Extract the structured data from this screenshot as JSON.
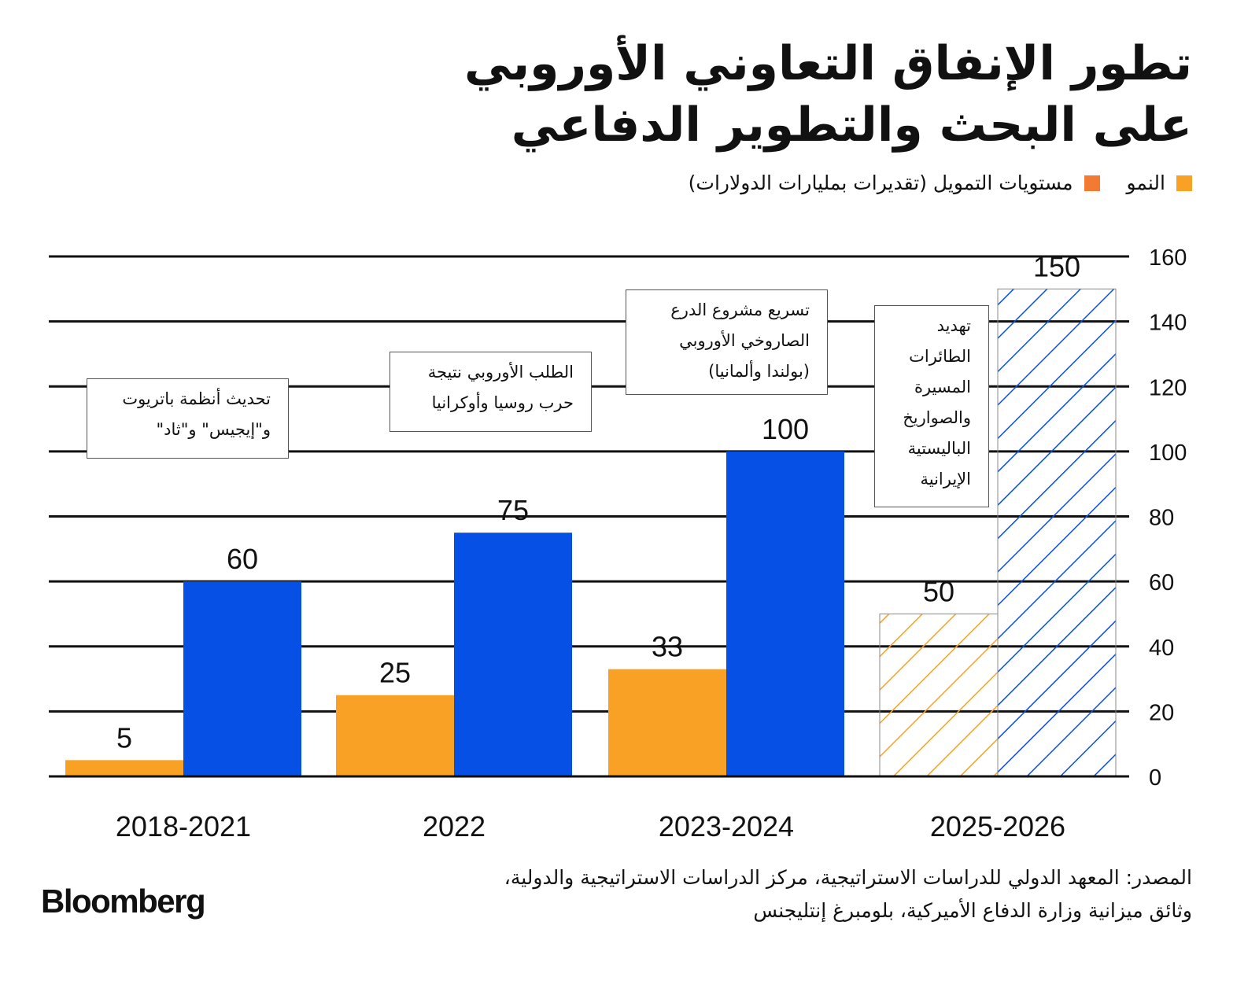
{
  "title": [
    "تطور الإنفاق التعاوني الأوروبي",
    "على البحث والتطوير الدفاعي"
  ],
  "legend": [
    {
      "label": "النمو",
      "color": "#f9a125"
    },
    {
      "label": "مستويات التمويل (تقديرات بمليارات الدولارات)",
      "color": "#f37a32"
    }
  ],
  "annotations": [
    "تحديث أنظمة باتريوت و\"إيجيس\" و\"ثاد\"",
    "الطلب الأوروبي نتيجة حرب روسيا وأوكرانيا",
    "تسريع مشروع الدرع الصاروخي الأوروبي (بولندا وألمانيا)",
    "تهديد الطائرات المسيرة والصواريخ الباليستية الإيرانية"
  ],
  "source": [
    "المصدر: المعهد الدولي للدراسات الاستراتيجية، مركز الدراسات الاستراتيجية والدولية،",
    "وثائق ميزانية وزارة الدفاع الأميركية، بلومبرغ إنتليجنس"
  ],
  "logo": "Bloomberg",
  "chart_data": {
    "type": "bar",
    "categories": [
      "2018-2021",
      "2022",
      "2023-2024",
      "2025-2026"
    ],
    "series": [
      {
        "values": [
          5,
          25,
          33,
          50
        ],
        "color": "#f9a125"
      },
      {
        "values": [
          60,
          75,
          100,
          150
        ],
        "color": "#0650e6"
      }
    ],
    "hatched_categories": [
      "2025-2026"
    ],
    "data_labels": [
      [
        "5",
        "25",
        "33",
        "50"
      ],
      [
        "60",
        "75",
        "100",
        "150"
      ]
    ],
    "ylim": [
      0,
      160
    ],
    "yticks": [
      0,
      20,
      40,
      60,
      80,
      100,
      120,
      140,
      160
    ],
    "y_axis_position": "right",
    "grid": true
  }
}
